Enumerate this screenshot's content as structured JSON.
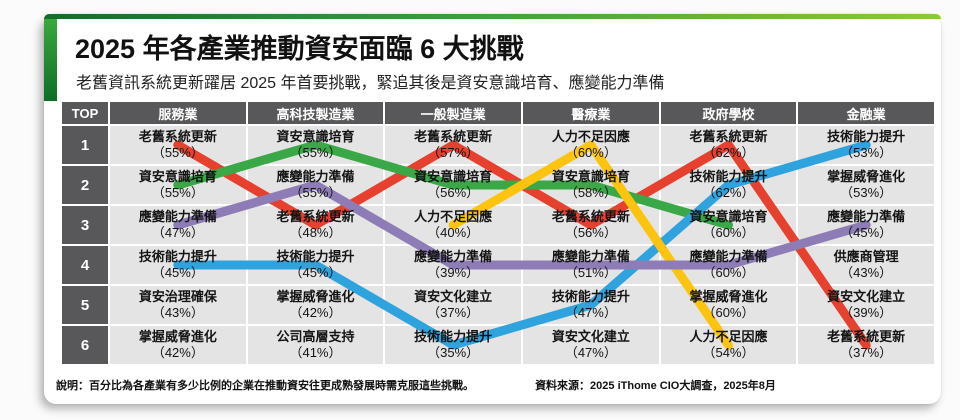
{
  "title": "2025 年各產業推動資安面臨 6 大挑戰",
  "subtitle": "老舊資訊系統更新躍居 2025 年首要挑戰，緊追其後是資安意識培育、應變能力準備",
  "table": {
    "corner_label": "TOP",
    "industries": [
      "服務業",
      "高科技製造業",
      "一般製造業",
      "醫療業",
      "政府學校",
      "金融業"
    ],
    "rows": [
      {
        "rank": "1",
        "cells": [
          {
            "name": "老舊系統更新",
            "pct": "（55%）"
          },
          {
            "name": "資安意識培育",
            "pct": "（55%）"
          },
          {
            "name": "老舊系統更新",
            "pct": "（57%）"
          },
          {
            "name": "人力不足因應",
            "pct": "（60%）"
          },
          {
            "name": "老舊系統更新",
            "pct": "（62%）"
          },
          {
            "name": "技術能力提升",
            "pct": "（53%）"
          }
        ]
      },
      {
        "rank": "2",
        "cells": [
          {
            "name": "資安意識培育",
            "pct": "（55%）"
          },
          {
            "name": "應變能力準備",
            "pct": "（55%）"
          },
          {
            "name": "資安意識培育",
            "pct": "（56%）"
          },
          {
            "name": "資安意識培育",
            "pct": "（58%）"
          },
          {
            "name": "技術能力提升",
            "pct": "（62%）"
          },
          {
            "name": "掌握威脅進化",
            "pct": "（53%）"
          }
        ]
      },
      {
        "rank": "3",
        "cells": [
          {
            "name": "應變能力準備",
            "pct": "（47%）"
          },
          {
            "name": "老舊系統更新",
            "pct": "（48%）"
          },
          {
            "name": "人力不足因應",
            "pct": "（40%）"
          },
          {
            "name": "老舊系統更新",
            "pct": "（56%）"
          },
          {
            "name": "資安意識培育",
            "pct": "（60%）"
          },
          {
            "name": "應變能力準備",
            "pct": "（45%）"
          }
        ]
      },
      {
        "rank": "4",
        "cells": [
          {
            "name": "技術能力提升",
            "pct": "（45%）"
          },
          {
            "name": "技術能力提升",
            "pct": "（45%）"
          },
          {
            "name": "應變能力準備",
            "pct": "（39%）"
          },
          {
            "name": "應變能力準備",
            "pct": "（51%）"
          },
          {
            "name": "應變能力準備",
            "pct": "（60%）"
          },
          {
            "name": "供應商管理",
            "pct": "（43%）"
          }
        ]
      },
      {
        "rank": "5",
        "cells": [
          {
            "name": "資安治理確保",
            "pct": "（43%）"
          },
          {
            "name": "掌握威脅進化",
            "pct": "（42%）"
          },
          {
            "name": "資安文化建立",
            "pct": "（37%）"
          },
          {
            "name": "技術能力提升",
            "pct": "（47%）"
          },
          {
            "name": "掌握威脅進化",
            "pct": "（60%）"
          },
          {
            "name": "資安文化建立",
            "pct": "（39%）"
          }
        ]
      },
      {
        "rank": "6",
        "cells": [
          {
            "name": "掌握威脅進化",
            "pct": "（42%）"
          },
          {
            "name": "公司高層支持",
            "pct": "（41%）"
          },
          {
            "name": "技術能力提升",
            "pct": "（35%）"
          },
          {
            "name": "資安文化建立",
            "pct": "（47%）"
          },
          {
            "name": "人力不足因應",
            "pct": "（54%）"
          },
          {
            "name": "老舊系統更新",
            "pct": "（37%）"
          }
        ]
      }
    ]
  },
  "footer": {
    "note": "說明：百分比為各產業有多少比例的企業在推動資安往更成熟發展時需克服這些挑戰。",
    "source": "資料來源：2025 iThome CIO大調查，2025年8月"
  },
  "chart_data": {
    "type": "line",
    "subtype": "bump-ranking-chart",
    "title": "2025 年各產業推動資安面臨 6 大挑戰",
    "categories": [
      "服務業",
      "高科技製造業",
      "一般製造業",
      "醫療業",
      "政府學校",
      "金融業"
    ],
    "rank_axis": {
      "top": 1,
      "bottom": 6
    },
    "legend_position": "none",
    "grid": false,
    "series": [
      {
        "name": "老舊系統更新",
        "color": "#e6402f",
        "ranks": [
          1,
          3,
          1,
          3,
          1,
          6
        ],
        "percents": [
          55,
          48,
          57,
          56,
          62,
          37
        ]
      },
      {
        "name": "資安意識培育",
        "color": "#3aa847",
        "ranks": [
          2,
          1,
          2,
          2,
          3,
          null
        ],
        "percents": [
          55,
          55,
          56,
          58,
          60,
          null
        ]
      },
      {
        "name": "技術能力提升",
        "color": "#2fa3de",
        "ranks": [
          4,
          4,
          6,
          5,
          2,
          1
        ],
        "percents": [
          45,
          45,
          35,
          47,
          62,
          53
        ]
      },
      {
        "name": "人力不足因應",
        "color": "#fcc40f",
        "ranks": [
          null,
          null,
          3,
          1,
          6,
          null
        ],
        "percents": [
          null,
          null,
          40,
          60,
          54,
          null
        ]
      },
      {
        "name": "應變能力準備",
        "color": "#8e7cb6",
        "ranks": [
          3,
          2,
          4,
          4,
          4,
          3
        ],
        "percents": [
          47,
          55,
          39,
          51,
          60,
          45
        ]
      }
    ],
    "unlinked_entries": [
      {
        "name": "資安治理確保",
        "industry": "服務業",
        "rank": 5,
        "percent": 43
      },
      {
        "name": "掌握威脅進化",
        "industry": "服務業",
        "rank": 6,
        "percent": 42
      },
      {
        "name": "掌握威脅進化",
        "industry": "高科技製造業",
        "rank": 5,
        "percent": 42
      },
      {
        "name": "公司高層支持",
        "industry": "高科技製造業",
        "rank": 6,
        "percent": 41
      },
      {
        "name": "資安文化建立",
        "industry": "一般製造業",
        "rank": 5,
        "percent": 37
      },
      {
        "name": "資安文化建立",
        "industry": "醫療業",
        "rank": 6,
        "percent": 47
      },
      {
        "name": "掌握威脅進化",
        "industry": "政府學校",
        "rank": 5,
        "percent": 60
      },
      {
        "name": "掌握威脅進化",
        "industry": "金融業",
        "rank": 2,
        "percent": 53
      },
      {
        "name": "供應商管理",
        "industry": "金融業",
        "rank": 4,
        "percent": 43
      },
      {
        "name": "資安文化建立",
        "industry": "金融業",
        "rank": 5,
        "percent": 39
      },
      {
        "name": "老舊系統更新",
        "industry": "金融業",
        "rank": 6,
        "percent": 37
      }
    ]
  }
}
